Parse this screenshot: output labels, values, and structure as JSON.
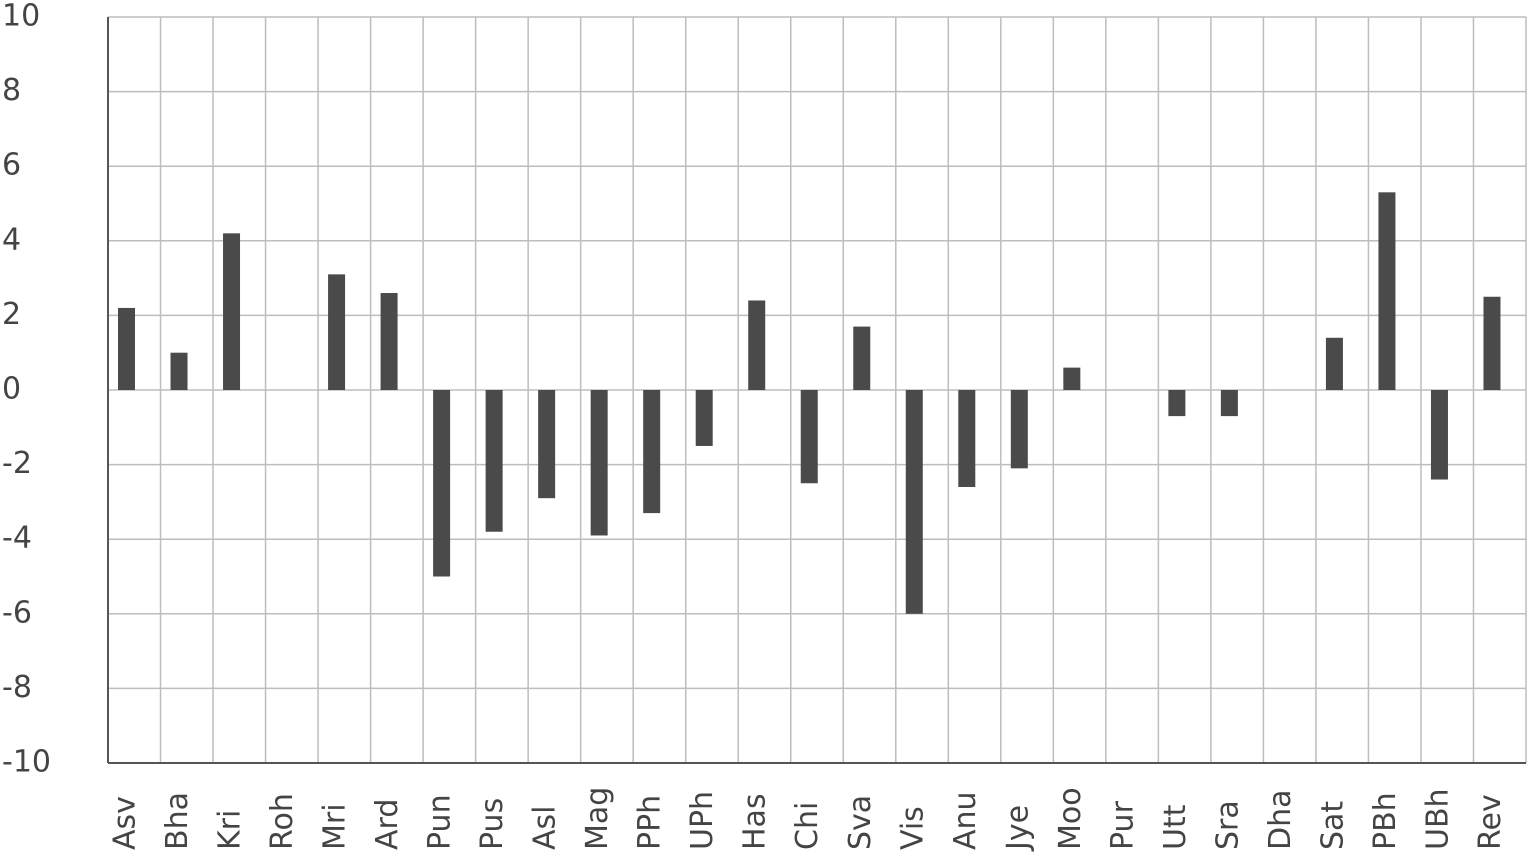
{
  "chart_data": {
    "type": "bar",
    "categories": [
      "Asv",
      "Bha",
      "Kri",
      "Roh",
      "Mri",
      "Ard",
      "Pun",
      "Pus",
      "Asl",
      "Mag",
      "PPh",
      "UPh",
      "Has",
      "Chi",
      "Sva",
      "Vis",
      "Anu",
      "Jye",
      "Moo",
      "Pur",
      "Utt",
      "Sra",
      "Dha",
      "Sat",
      "PBh",
      "UBh",
      "Rev"
    ],
    "values": [
      2.2,
      1,
      4.2,
      0,
      3.1,
      2.6,
      -5,
      -3.8,
      -2.9,
      -3.9,
      -3.3,
      -1.5,
      2.4,
      -2.5,
      1.7,
      -6,
      -2.6,
      -2.1,
      0.6,
      0,
      -0.7,
      -0.7,
      0,
      1.4,
      5.3,
      -2.4,
      2.5
    ],
    "color": "#4a4a4a",
    "ylim": [
      -10,
      10
    ],
    "yticks": [
      -10,
      -8,
      -6,
      -4,
      -2,
      0,
      2,
      4,
      6,
      8,
      10
    ],
    "grid": true
  }
}
